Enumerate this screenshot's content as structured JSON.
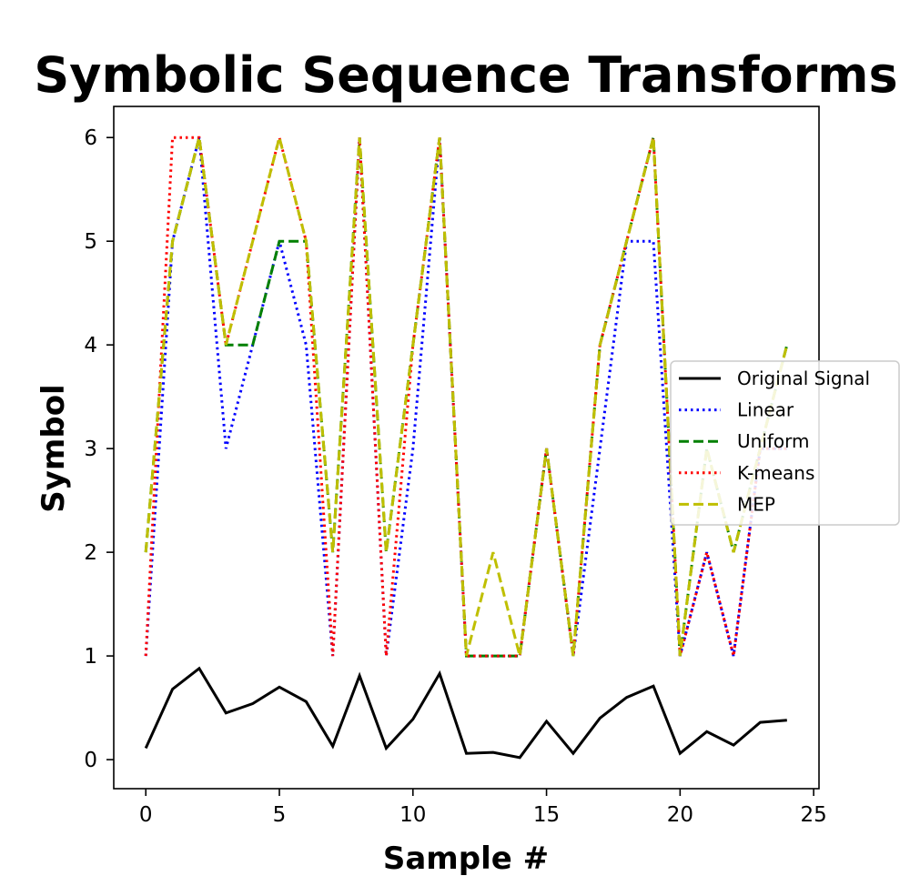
{
  "chart_data": {
    "type": "line",
    "title": "Symbolic Sequence Transforms",
    "xlabel": "Sample #",
    "ylabel": "Symbol",
    "xlim": [
      -1.2,
      25.2
    ],
    "ylim": [
      -0.28,
      6.3
    ],
    "xticks": [
      0,
      5,
      10,
      15,
      20,
      25
    ],
    "yticks": [
      0,
      1,
      2,
      3,
      4,
      5,
      6
    ],
    "grid": false,
    "legend_position": "right",
    "x": [
      0,
      1,
      2,
      3,
      4,
      5,
      6,
      7,
      8,
      9,
      10,
      11,
      12,
      13,
      14,
      15,
      16,
      17,
      18,
      19,
      20,
      21,
      22,
      23,
      24
    ],
    "series": [
      {
        "name": "Original Signal",
        "color": "#000000",
        "style": "solid",
        "values": [
          0.11,
          0.68,
          0.88,
          0.45,
          0.54,
          0.7,
          0.56,
          0.13,
          0.81,
          0.11,
          0.39,
          0.83,
          0.06,
          0.07,
          0.02,
          0.37,
          0.06,
          0.4,
          0.6,
          0.71,
          0.06,
          0.27,
          0.14,
          0.36,
          0.38
        ]
      },
      {
        "name": "Linear",
        "color": "#0000ff",
        "style": "dotted",
        "values": [
          1,
          5,
          6,
          3,
          4,
          5,
          4,
          1,
          6,
          1,
          3,
          6,
          1,
          1,
          1,
          3,
          1,
          3,
          5,
          5,
          1,
          2,
          1,
          3,
          3
        ]
      },
      {
        "name": "Uniform",
        "color": "#008000",
        "style": "dashed",
        "values": [
          2,
          5,
          6,
          4,
          4,
          5,
          5,
          2,
          6,
          2,
          4,
          6,
          1,
          1,
          1,
          3,
          1,
          4,
          5,
          6,
          1,
          3,
          2,
          3,
          4
        ]
      },
      {
        "name": "K-means",
        "color": "#ff0000",
        "style": "dotted",
        "values": [
          1,
          6,
          6,
          4,
          5,
          6,
          5,
          1,
          6,
          1,
          4,
          6,
          1,
          1,
          1,
          3,
          1,
          4,
          5,
          6,
          1,
          2,
          1,
          3,
          3
        ]
      },
      {
        "name": "MEP",
        "color": "#bfbf00",
        "style": "dashed",
        "values": [
          2,
          5,
          6,
          4,
          5,
          6,
          5,
          2,
          6,
          2,
          4,
          6,
          1,
          2,
          1,
          3,
          1,
          4,
          5,
          6,
          1,
          3,
          2,
          3,
          4
        ]
      }
    ]
  }
}
